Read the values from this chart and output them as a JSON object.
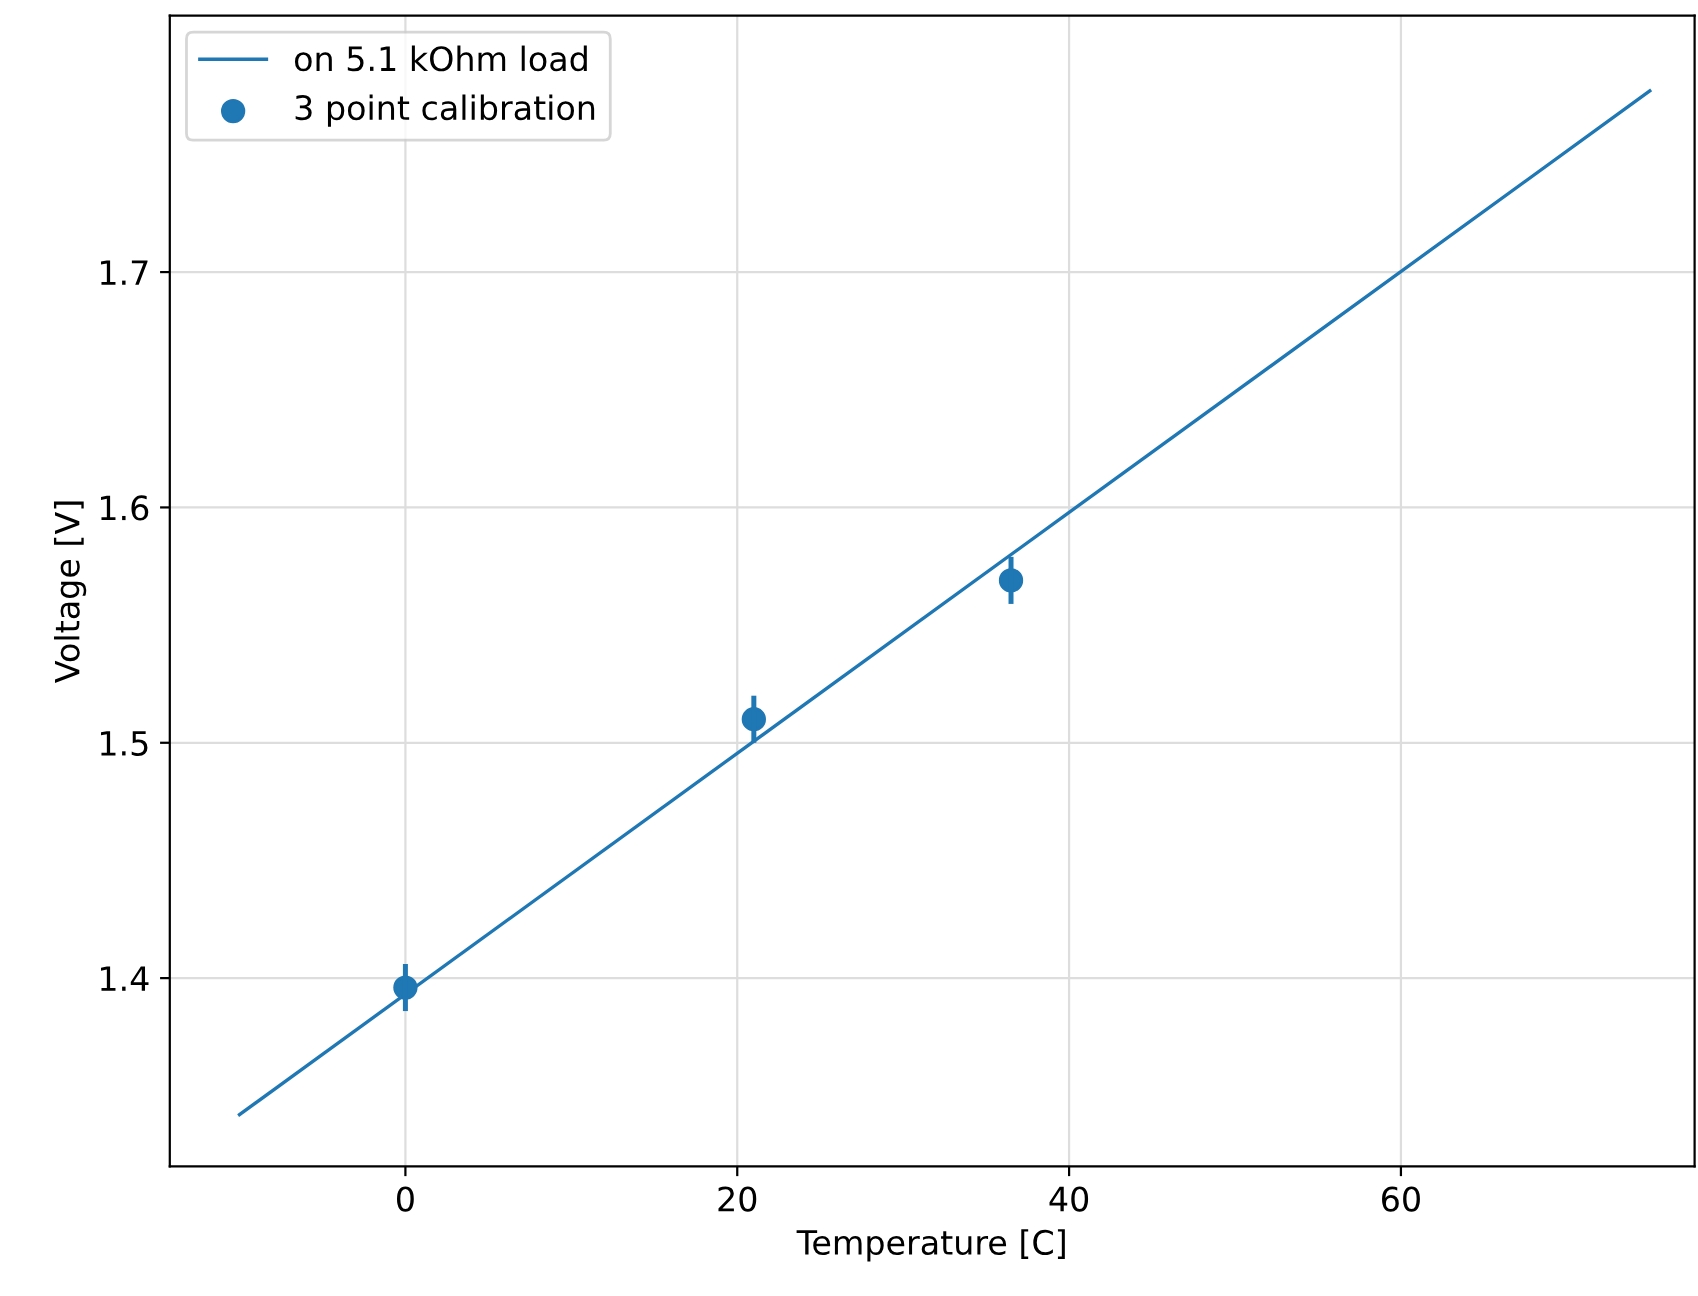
{
  "chart_data": {
    "type": "line",
    "xlabel": "Temperature [C]",
    "ylabel": "Voltage [V]",
    "xlim": [
      -14.2,
      77.7
    ],
    "ylim": [
      1.32,
      1.809
    ],
    "xticks": [
      0,
      20,
      40,
      60
    ],
    "yticks": [
      1.4,
      1.5,
      1.6,
      1.7
    ],
    "grid": true,
    "legend": "top left",
    "series": [
      {
        "name": "on 5.1 kOhm load",
        "color": "#1f77b4",
        "x": [
          -10,
          75
        ],
        "values": [
          1.342,
          1.777
        ]
      },
      {
        "name": "3 point calibration",
        "type": "scatter",
        "color": "#1f77b4",
        "marker": "circle",
        "x": [
          0,
          21,
          36.5
        ],
        "values": [
          1.396,
          1.51,
          1.569
        ],
        "errors": [
          0.01,
          0.01,
          0.01
        ]
      }
    ]
  }
}
